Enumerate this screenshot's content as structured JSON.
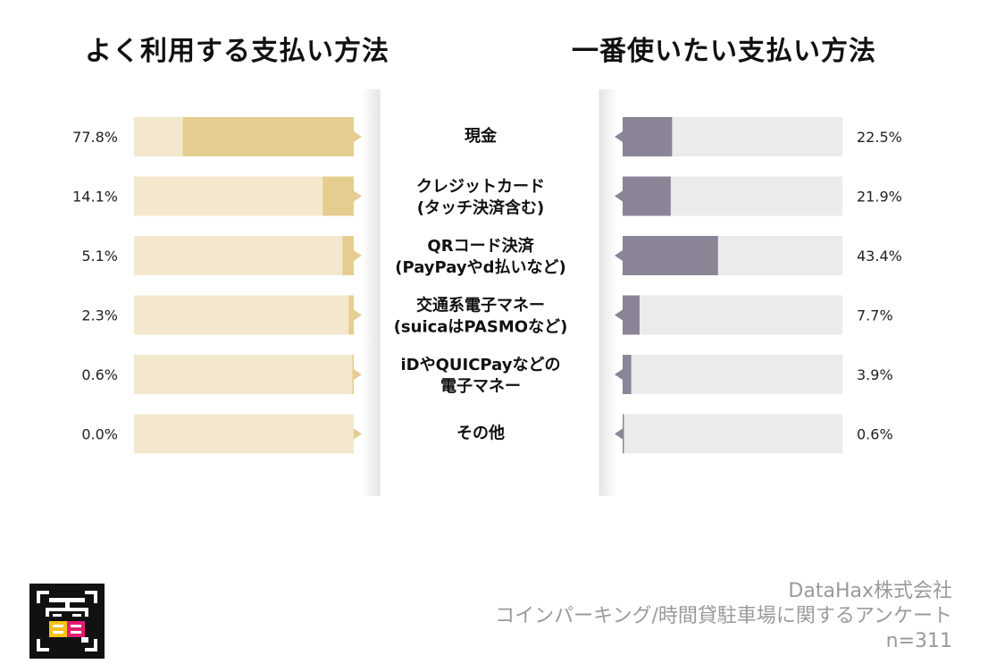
{
  "left_title": "よく利用する支払い方法",
  "right_title": "一番使いたい支払い方法",
  "footer": {
    "company": "DataHax株式会社",
    "survey": "コインパーキング/時間貸駐車場に関するアンケート",
    "n": "n=311"
  },
  "colors": {
    "left_bar": "#e4cd8f",
    "left_track": "#f3e8cd",
    "right_bar": "#8a8496",
    "right_track": "#ebebeb",
    "divider": "#e2e2e2"
  },
  "chart_data": [
    {
      "type": "bar",
      "title": "よく利用する支払い方法",
      "orientation": "horizontal",
      "direction": "right-to-left",
      "categories": [
        [
          "現金"
        ],
        [
          "クレジットカード",
          "(タッチ決済含む)"
        ],
        [
          "QRコード決済",
          "(PayPayやd払いなど)"
        ],
        [
          "交通系電子マネー",
          "(suicaはPASMOなど)"
        ],
        [
          "iDやQUICPayなどの",
          "電子マネー"
        ],
        [
          "その他"
        ]
      ],
      "values": [
        77.8,
        14.1,
        5.1,
        2.3,
        0.6,
        0.0
      ],
      "value_labels": [
        "77.8%",
        "14.1%",
        "5.1%",
        "2.3%",
        "0.6%",
        "0.0%"
      ],
      "unit": "%",
      "xlim": [
        0,
        100
      ]
    },
    {
      "type": "bar",
      "title": "一番使いたい支払い方法",
      "orientation": "horizontal",
      "direction": "left-to-right",
      "categories": [
        [
          "現金"
        ],
        [
          "クレジットカード",
          "(タッチ決済含む)"
        ],
        [
          "QRコード決済",
          "(PayPayやd払いなど)"
        ],
        [
          "交通系電子マネー",
          "(suicaはPASMOなど)"
        ],
        [
          "iDやQUICPayなどの",
          "電子マネー"
        ],
        [
          "その他"
        ]
      ],
      "values": [
        22.5,
        21.9,
        43.4,
        7.7,
        3.9,
        0.6
      ],
      "value_labels": [
        "22.5%",
        "21.9%",
        "43.4%",
        "7.7%",
        "3.9%",
        "0.6%"
      ],
      "unit": "%",
      "xlim": [
        0,
        100
      ]
    }
  ]
}
